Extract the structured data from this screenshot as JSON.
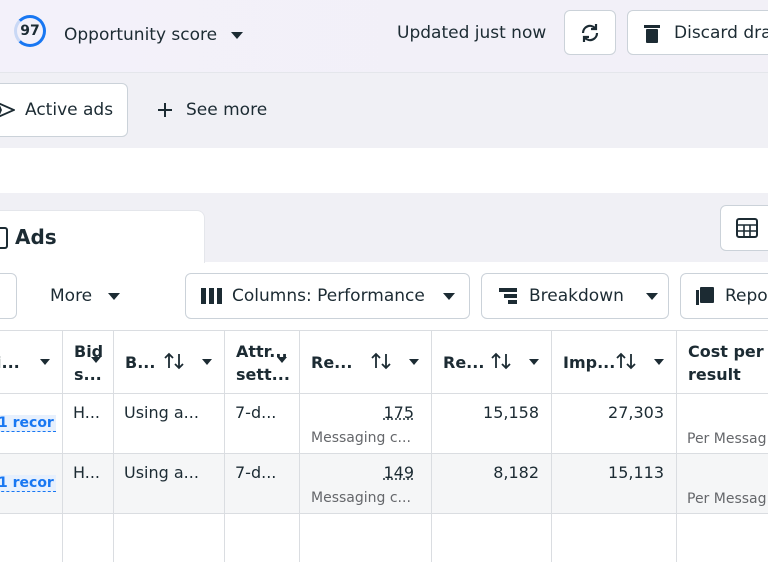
{
  "header": {
    "score": "97",
    "score_label": "Opportunity score",
    "status": "Updated just now",
    "discard": "Discard dra"
  },
  "filters": {
    "active": "Active ads",
    "see_more": "See more"
  },
  "tab": {
    "title": "Ads"
  },
  "toolbar": {
    "more": "More",
    "columns": "Columns: Performance",
    "breakdown": "Breakdown",
    "reports": "Repo"
  },
  "table": {
    "headers": [
      [
        "i..."
      ],
      [
        "Bid",
        "s..."
      ],
      [
        "B..."
      ],
      [
        "Attr...",
        "sett..."
      ],
      [
        "Re..."
      ],
      [
        "Re..."
      ],
      [
        "Imp..."
      ],
      [
        "Cost per",
        "result"
      ]
    ],
    "rows": [
      {
        "cells": [
          "1 recor",
          "H...",
          "Using a...",
          "7-d...",
          "175",
          "15,158",
          "27,303"
        ],
        "result_type": "Messaging c...",
        "cost_type": "Per Messag"
      },
      {
        "cells": [
          "1 recor",
          "H...",
          "Using a...",
          "7-d...",
          "149",
          "8,182",
          "15,113"
        ],
        "result_type": "Messaging c...",
        "cost_type": "Per Messag"
      }
    ]
  }
}
